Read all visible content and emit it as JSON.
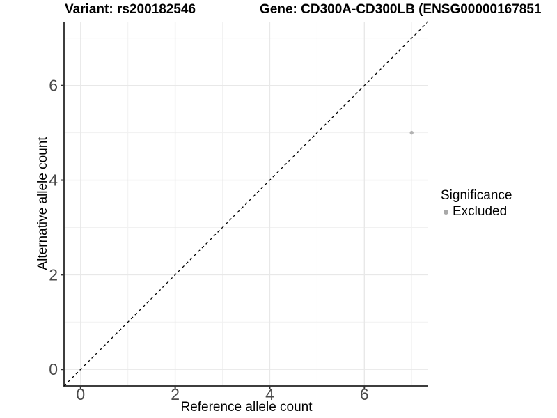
{
  "figure": {
    "title_left": "Variant: rs200182546",
    "title_right": "Gene: CD300A-CD300LB (ENSG00000167851",
    "x_axis_label": "Reference allele count",
    "y_axis_label": "Alternative allele count"
  },
  "legend": {
    "title": "Significance",
    "items": [
      {
        "label": "Excluded",
        "color": "#a9a9a9"
      }
    ]
  },
  "chart_data": {
    "type": "scatter",
    "title_left": "Variant: rs200182546",
    "title_right": "Gene: CD300A-CD300LB (ENSG00000167851",
    "xlabel": "Reference allele count",
    "ylabel": "Alternative allele count",
    "xlim": [
      -0.35,
      7.35
    ],
    "ylim": [
      -0.35,
      7.35
    ],
    "x_major_ticks": [
      0,
      2,
      4,
      6
    ],
    "y_major_ticks": [
      0,
      2,
      4,
      6
    ],
    "x_minor_gridlines": [
      1,
      3,
      5,
      7
    ],
    "y_minor_gridlines": [
      1,
      3,
      5,
      7
    ],
    "grid": true,
    "legend_position": "right",
    "series": [
      {
        "name": "Excluded",
        "points": [
          {
            "x": 7,
            "y": 5
          }
        ],
        "color": "#b3b3b3",
        "point_radius": 2.7
      }
    ],
    "reference_line": {
      "type": "identity y=x",
      "from": [
        -0.35,
        -0.35
      ],
      "to": [
        7.35,
        7.35
      ],
      "style": "dashed",
      "color": "#000000"
    },
    "colors": {
      "major_grid": "#e8e8e8",
      "minor_grid": "#f1f1f1",
      "axis_line": "#3d3d3d",
      "tick_mark": "#343434",
      "tick_label": "#4a4a4a"
    }
  }
}
